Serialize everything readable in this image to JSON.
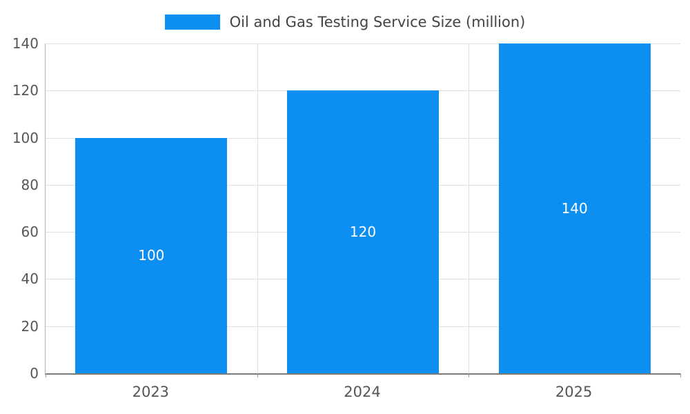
{
  "legend": {
    "label": "Oil and Gas Testing Service Size (million)"
  },
  "colors": {
    "bar": "#0d8ff2",
    "grid": "#e0e0e0",
    "axis": "#7a7a7a",
    "tick_text": "#555555",
    "data_label_text": "#ffffff"
  },
  "chart_data": {
    "type": "bar",
    "title": "Oil and Gas Testing Service Size (million)",
    "series_name": "Oil and Gas Testing Service Size (million)",
    "categories": [
      "2023",
      "2024",
      "2025"
    ],
    "values": [
      100,
      120,
      140
    ],
    "data_labels": [
      "100",
      "120",
      "140"
    ],
    "yticks": [
      0,
      20,
      40,
      60,
      80,
      100,
      120,
      140
    ],
    "ylim": [
      0,
      140
    ],
    "xlabel": "",
    "ylabel": "",
    "grid": true,
    "legend_position": "top",
    "bar_color": "#0d8ff2"
  }
}
